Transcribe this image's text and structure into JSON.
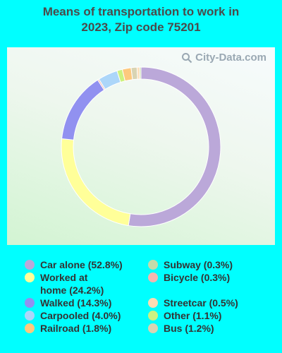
{
  "chart_data": {
    "type": "pie",
    "title": "Means of transportation to work in 2023, Zip code 75201",
    "categories": [
      "Car alone",
      "Worked at home",
      "Walked",
      "Bicycle",
      "Carpooled",
      "Other",
      "Railroad",
      "Bus",
      "Streetcar",
      "Subway"
    ],
    "values": [
      52.8,
      24.2,
      14.3,
      0.3,
      4.0,
      1.1,
      1.8,
      1.2,
      0.5,
      0.3
    ],
    "colors": [
      "#bba8d9",
      "#ffff99",
      "#9191f0",
      "#f4b6b0",
      "#acd6f9",
      "#ccf280",
      "#fdc97e",
      "#d9d4b3",
      "#fcdcb4",
      "#c6dbaa"
    ],
    "legend": [
      {
        "label": "Car alone (52.8%)",
        "color": "#bba8d9"
      },
      {
        "label": "Worked at home (24.2%)",
        "color": "#ffff99"
      },
      {
        "label": "Walked (14.3%)",
        "color": "#9191f0"
      },
      {
        "label": "Carpooled (4.0%)",
        "color": "#acd6f9"
      },
      {
        "label": "Railroad (1.8%)",
        "color": "#fdc97e"
      },
      {
        "label": "Subway (0.3%)",
        "color": "#c6dbaa"
      },
      {
        "label": "Bicycle (0.3%)",
        "color": "#f4b6b0"
      },
      {
        "label": "Streetcar (0.5%)",
        "color": "#fcdcb4"
      },
      {
        "label": "Other (1.1%)",
        "color": "#ccf280"
      },
      {
        "label": "Bus (1.2%)",
        "color": "#d9d4b3"
      }
    ],
    "legend_placement": "bottom"
  },
  "title_line1": "Means of transportation to work in",
  "title_line2": "2023, Zip code 75201",
  "watermark": "City-Data.com",
  "icons": {
    "watermark": "search-icon"
  }
}
